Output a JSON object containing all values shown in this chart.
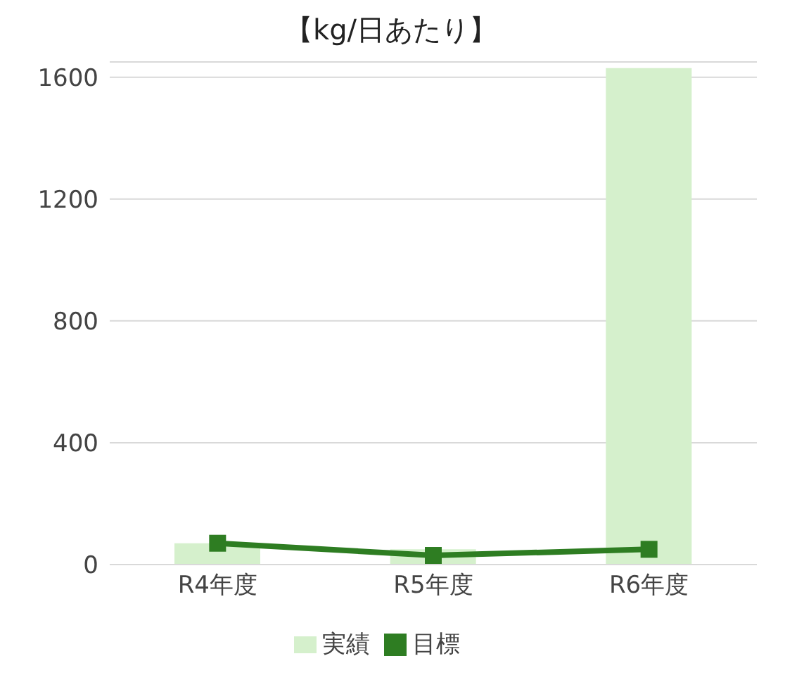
{
  "chart_data": {
    "type": "bar",
    "title": "【kg/日あたり】",
    "categories": [
      "R4年度",
      "R5年度",
      "R6年度"
    ],
    "series": [
      {
        "name": "実績",
        "color": "#d5f0cc",
        "values": [
          70,
          50,
          1630
        ]
      },
      {
        "name": "目標",
        "type": "line",
        "color": "#2e7d22",
        "values": [
          70,
          30,
          50
        ]
      }
    ],
    "ylim": [
      0,
      1650
    ],
    "yticks": [
      0,
      400,
      800,
      1200,
      1600
    ],
    "grid": "y",
    "legend": "bottom",
    "marker": "square"
  }
}
